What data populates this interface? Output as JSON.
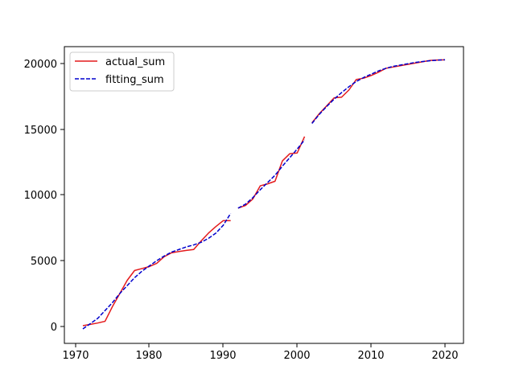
{
  "chart_data": {
    "type": "line",
    "title": "",
    "xlabel": "",
    "ylabel": "",
    "xlim": [
      1968.5,
      2022.5
    ],
    "ylim": [
      -1300,
      21300
    ],
    "xticks": [
      1970,
      1980,
      1990,
      2000,
      2010,
      2020
    ],
    "yticks": [
      0,
      5000,
      10000,
      15000,
      20000
    ],
    "xtick_labels": [
      "1970",
      "1980",
      "1990",
      "2000",
      "2010",
      "2020"
    ],
    "ytick_labels": [
      "0",
      "5000",
      "10000",
      "15000",
      "20000"
    ],
    "grid": false,
    "legend": "top-left",
    "series": [
      {
        "name": "actual_sum",
        "color": "#e41a1c",
        "style": "solid",
        "segments": [
          [
            [
              1971,
              50
            ],
            [
              1972,
              150
            ],
            [
              1973,
              250
            ],
            [
              1974,
              380
            ],
            [
              1975,
              1500
            ],
            [
              1976,
              2500
            ],
            [
              1977,
              3500
            ],
            [
              1978,
              4250
            ],
            [
              1979,
              4400
            ],
            [
              1980,
              4550
            ],
            [
              1981,
              4800
            ],
            [
              1982,
              5300
            ],
            [
              1983,
              5600
            ],
            [
              1984,
              5700
            ],
            [
              1985,
              5780
            ],
            [
              1986,
              5850
            ],
            [
              1987,
              6500
            ],
            [
              1988,
              7100
            ],
            [
              1989,
              7600
            ],
            [
              1990,
              8050
            ],
            [
              1991,
              8050
            ]
          ],
          [
            [
              1992,
              9000
            ],
            [
              1993,
              9200
            ],
            [
              1994,
              9700
            ],
            [
              1995,
              10700
            ],
            [
              1996,
              10850
            ],
            [
              1997,
              11050
            ],
            [
              1998,
              12600
            ],
            [
              1999,
              13150
            ],
            [
              2000,
              13200
            ],
            [
              2001,
              14450
            ]
          ],
          [
            [
              2002,
              15500
            ],
            [
              2003,
              16200
            ],
            [
              2004,
              16800
            ],
            [
              2005,
              17400
            ],
            [
              2006,
              17450
            ],
            [
              2007,
              18000
            ],
            [
              2008,
              18800
            ],
            [
              2009,
              18900
            ],
            [
              2010,
              19100
            ],
            [
              2011,
              19350
            ],
            [
              2012,
              19650
            ],
            [
              2013,
              19750
            ],
            [
              2014,
              19850
            ],
            [
              2015,
              19950
            ],
            [
              2016,
              20050
            ],
            [
              2017,
              20150
            ],
            [
              2018,
              20250
            ],
            [
              2019,
              20280
            ],
            [
              2020,
              20300
            ]
          ]
        ]
      },
      {
        "name": "fitting_sum",
        "color": "#0000cd",
        "style": "dashed",
        "segments": [
          [
            [
              1971,
              -200
            ],
            [
              1972,
              200
            ],
            [
              1973,
              600
            ],
            [
              1974,
              1200
            ],
            [
              1975,
              1800
            ],
            [
              1976,
              2500
            ],
            [
              1977,
              3100
            ],
            [
              1978,
              3700
            ],
            [
              1979,
              4200
            ],
            [
              1980,
              4600
            ],
            [
              1981,
              5000
            ],
            [
              1982,
              5350
            ],
            [
              1983,
              5650
            ],
            [
              1984,
              5850
            ],
            [
              1985,
              6050
            ],
            [
              1986,
              6200
            ],
            [
              1987,
              6400
            ],
            [
              1988,
              6700
            ],
            [
              1989,
              7100
            ],
            [
              1990,
              7700
            ],
            [
              1991,
              8600
            ]
          ],
          [
            [
              1992,
              9000
            ],
            [
              1993,
              9300
            ],
            [
              1994,
              9800
            ],
            [
              1995,
              10400
            ],
            [
              1996,
              10950
            ],
            [
              1997,
              11500
            ],
            [
              1998,
              12200
            ],
            [
              1999,
              12850
            ],
            [
              2000,
              13500
            ],
            [
              2001,
              14200
            ]
          ],
          [
            [
              2002,
              15450
            ],
            [
              2003,
              16150
            ],
            [
              2004,
              16750
            ],
            [
              2005,
              17300
            ],
            [
              2006,
              17800
            ],
            [
              2007,
              18250
            ],
            [
              2008,
              18650
            ],
            [
              2009,
              18950
            ],
            [
              2010,
              19200
            ],
            [
              2011,
              19450
            ],
            [
              2012,
              19650
            ],
            [
              2013,
              19800
            ],
            [
              2014,
              19900
            ],
            [
              2015,
              20000
            ],
            [
              2016,
              20100
            ],
            [
              2017,
              20170
            ],
            [
              2018,
              20230
            ],
            [
              2019,
              20270
            ],
            [
              2020,
              20300
            ]
          ]
        ]
      }
    ]
  }
}
